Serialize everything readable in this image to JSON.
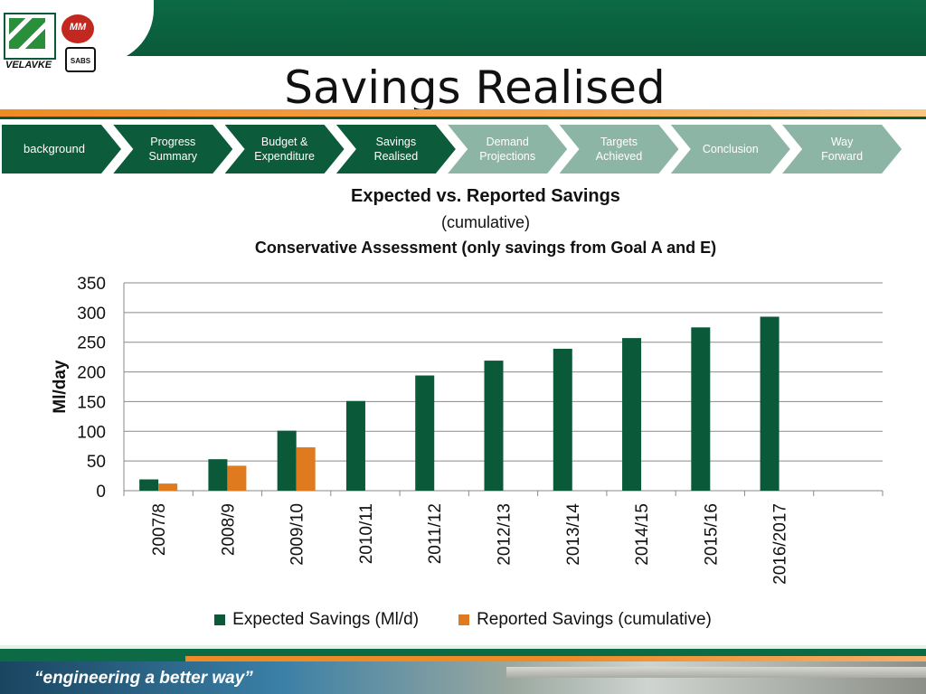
{
  "slide": {
    "title": "Savings Realised",
    "tagline": "“engineering a better way”",
    "logos": {
      "left_text": "VELAVKE",
      "mm_text": "MM",
      "sabs_text": "SABS"
    }
  },
  "nav": {
    "steps": [
      {
        "label": "background",
        "state": "done"
      },
      {
        "label": "Progress\nSummary",
        "state": "done"
      },
      {
        "label": "Budget &\nExpenditure",
        "state": "done"
      },
      {
        "label": "Savings\nRealised",
        "state": "done"
      },
      {
        "label": "Demand\nProjections",
        "state": "todo"
      },
      {
        "label": "Targets\nAchieved",
        "state": "todo"
      },
      {
        "label": "Conclusion",
        "state": "todo"
      },
      {
        "label": "Way\nForward",
        "state": "todo"
      }
    ]
  },
  "colors": {
    "expected": "#0a5a3a",
    "reported": "#e07a1f",
    "nav_done": "#0c5c3c",
    "nav_todo": "#8db5a5"
  },
  "chart_data": {
    "type": "bar",
    "title": "Expected vs. Reported Savings",
    "subtitle": "(cumulative)",
    "subtitle2": "Conservative Assessment  (only savings from Goal A and E)",
    "xlabel": "",
    "ylabel": "Ml/day",
    "ylim": [
      0,
      350
    ],
    "yticks": [
      0,
      50,
      100,
      150,
      200,
      250,
      300,
      350
    ],
    "grid": true,
    "legend_position": "bottom",
    "categories": [
      "2007/8",
      "2008/9",
      "2009/10",
      "2010/11",
      "2011/12",
      "2012/13",
      "2013/14",
      "2014/15",
      "2015/16",
      "2016/2017",
      ""
    ],
    "series": [
      {
        "name": "Expected Savings (Ml/d)",
        "color": "#0a5a3a",
        "values": [
          19,
          53,
          101,
          151,
          194,
          219,
          239,
          257,
          275,
          293,
          null
        ]
      },
      {
        "name": "Reported Savings (cumulative)",
        "color": "#e07a1f",
        "values": [
          12,
          42,
          73,
          null,
          null,
          null,
          null,
          null,
          null,
          null,
          null
        ]
      }
    ]
  }
}
